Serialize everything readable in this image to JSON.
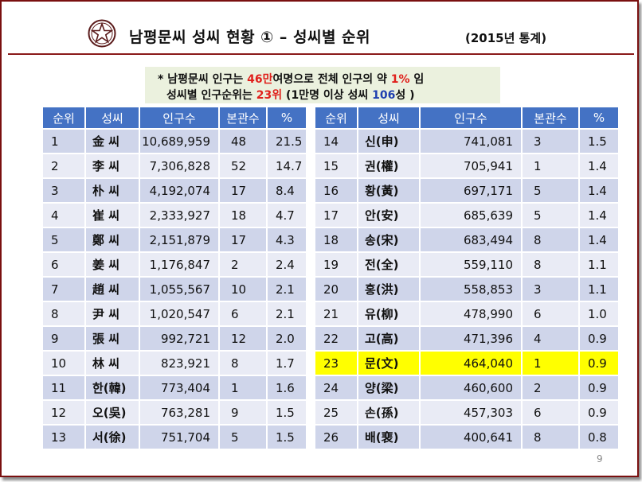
{
  "header": {
    "title": "남평문씨 성씨 현황 ① – 성씨별 순위",
    "year": "(2015년 통계)"
  },
  "note": {
    "line1_a": "* 남평문씨 인구는 ",
    "line1_b": "46만",
    "line1_c": "여명으로 전체 인구의 약 ",
    "line1_d": "1%",
    "line1_e": " 임",
    "line2_a": "성씨별 인구순위는 ",
    "line2_b": "23위",
    "line2_c": " (1만명 이상 성씨 ",
    "line2_d": "106",
    "line2_e": "성 )"
  },
  "columns": [
    "순위",
    "성씨",
    "인구수",
    "본관수",
    "%"
  ],
  "colors": {
    "header": "#4472c4",
    "row_odd": "#cfd5ea",
    "row_even": "#e9ebf5",
    "highlight": "#ffff00",
    "border": "#7a1010"
  },
  "left_rows": [
    {
      "rank": "1",
      "name": "金 씨",
      "pop": "10,689,959",
      "bon": "48",
      "pct": "21.5"
    },
    {
      "rank": "2",
      "name": "李 씨",
      "pop": "7,306,828",
      "bon": "52",
      "pct": "14.7"
    },
    {
      "rank": "3",
      "name": "朴 씨",
      "pop": "4,192,074",
      "bon": "17",
      "pct": "8.4"
    },
    {
      "rank": "4",
      "name": "崔 씨",
      "pop": "2,333,927",
      "bon": "18",
      "pct": "4.7"
    },
    {
      "rank": "5",
      "name": "鄭 씨",
      "pop": "2,151,879",
      "bon": "17",
      "pct": "4.3"
    },
    {
      "rank": "6",
      "name": "姜 씨",
      "pop": "1,176,847",
      "bon": "2",
      "pct": "2.4"
    },
    {
      "rank": "7",
      "name": "趙 씨",
      "pop": "1,055,567",
      "bon": "10",
      "pct": "2.1"
    },
    {
      "rank": "8",
      "name": "尹 씨",
      "pop": "1,020,547",
      "bon": "6",
      "pct": "2.1"
    },
    {
      "rank": "9",
      "name": "張 씨",
      "pop": "992,721",
      "bon": "12",
      "pct": "2.0"
    },
    {
      "rank": "10",
      "name": "林 씨",
      "pop": "823,921",
      "bon": "8",
      "pct": "1.7"
    },
    {
      "rank": "11",
      "name": "한(韓)",
      "pop": "773,404",
      "bon": "1",
      "pct": "1.6"
    },
    {
      "rank": "12",
      "name": "오(吳)",
      "pop": "763,281",
      "bon": "9",
      "pct": "1.5"
    },
    {
      "rank": "13",
      "name": "서(徐)",
      "pop": "751,704",
      "bon": "5",
      "pct": "1.5"
    }
  ],
  "right_rows": [
    {
      "rank": "14",
      "name": "신(申)",
      "pop": "741,081",
      "bon": "3",
      "pct": "1.5"
    },
    {
      "rank": "15",
      "name": "권(權)",
      "pop": "705,941",
      "bon": "1",
      "pct": "1.4"
    },
    {
      "rank": "16",
      "name": "황(黃)",
      "pop": "697,171",
      "bon": "5",
      "pct": "1.4"
    },
    {
      "rank": "17",
      "name": "안(安)",
      "pop": "685,639",
      "bon": "5",
      "pct": "1.4"
    },
    {
      "rank": "18",
      "name": "송(宋)",
      "pop": "683,494",
      "bon": "8",
      "pct": "1.4"
    },
    {
      "rank": "19",
      "name": "전(全)",
      "pop": "559,110",
      "bon": "8",
      "pct": "1.1"
    },
    {
      "rank": "20",
      "name": "홍(洪)",
      "pop": "558,853",
      "bon": "3",
      "pct": "1.1"
    },
    {
      "rank": "21",
      "name": "유(柳)",
      "pop": "478,990",
      "bon": "6",
      "pct": "1.0"
    },
    {
      "rank": "22",
      "name": "고(高)",
      "pop": "471,396",
      "bon": "4",
      "pct": "0.9"
    },
    {
      "rank": "23",
      "name": "문(文)",
      "pop": "464,040",
      "bon": "1",
      "pct": "0.9"
    },
    {
      "rank": "24",
      "name": "양(梁)",
      "pop": "460,600",
      "bon": "2",
      "pct": "0.9"
    },
    {
      "rank": "25",
      "name": "손(孫)",
      "pop": "457,303",
      "bon": "6",
      "pct": "0.9"
    },
    {
      "rank": "26",
      "name": "배(裵)",
      "pop": "400,641",
      "bon": "8",
      "pct": "0.8"
    }
  ],
  "highlight_rank": "23",
  "page_number": "9",
  "logo_icon": "star-emblem-icon"
}
